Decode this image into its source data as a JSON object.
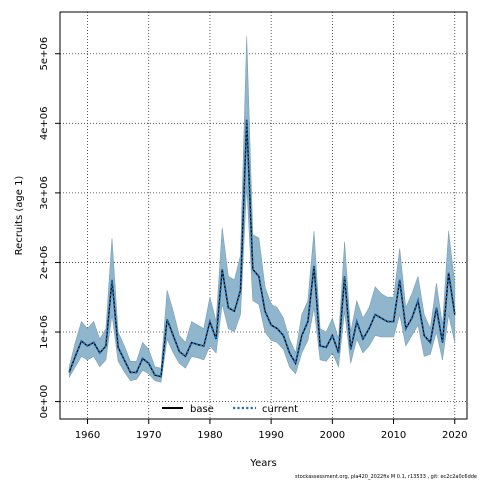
{
  "chart_data": {
    "type": "line",
    "xlabel": "Years",
    "ylabel": "Recruits (age 1)",
    "xlim": [
      1955.5,
      2022
    ],
    "ylim": [
      -250000,
      5600000
    ],
    "xticks": [
      1960,
      1970,
      1980,
      1990,
      2000,
      2010,
      2020
    ],
    "xtick_labels": [
      "1960",
      "1970",
      "1980",
      "1990",
      "2000",
      "2010",
      "2020"
    ],
    "yticks": [
      0,
      1000000,
      2000000,
      3000000,
      4000000,
      5000000
    ],
    "ytick_labels": [
      "0e+00",
      "1e+06",
      "2e+06",
      "3e+06",
      "4e+06",
      "5e+06"
    ],
    "grid": "dotted",
    "legend_position": "bottom-center",
    "band_color": "#8fb6cc",
    "x": [
      1957,
      1958,
      1959,
      1960,
      1961,
      1962,
      1963,
      1964,
      1965,
      1966,
      1967,
      1968,
      1969,
      1970,
      1971,
      1972,
      1973,
      1974,
      1975,
      1976,
      1977,
      1978,
      1979,
      1980,
      1981,
      1982,
      1983,
      1984,
      1985,
      1986,
      1987,
      1988,
      1989,
      1990,
      1991,
      1992,
      1993,
      1994,
      1995,
      1996,
      1997,
      1998,
      1999,
      2000,
      2001,
      2002,
      2003,
      2004,
      2005,
      2006,
      2007,
      2008,
      2009,
      2010,
      2011,
      2012,
      2013,
      2014,
      2015,
      2016,
      2017,
      2018,
      2019,
      2020
    ],
    "series": [
      {
        "name": "base",
        "color": "#000000",
        "dash": "solid",
        "values": [
          420000,
          650000,
          870000,
          800000,
          850000,
          700000,
          800000,
          1750000,
          780000,
          600000,
          420000,
          420000,
          620000,
          550000,
          380000,
          360000,
          1180000,
          950000,
          720000,
          650000,
          850000,
          820000,
          800000,
          1150000,
          900000,
          1900000,
          1350000,
          1300000,
          1600000,
          4050000,
          1900000,
          1800000,
          1300000,
          1100000,
          1050000,
          950000,
          700000,
          550000,
          950000,
          1150000,
          1950000,
          800000,
          780000,
          950000,
          700000,
          1800000,
          750000,
          1150000,
          900000,
          1050000,
          1250000,
          1200000,
          1150000,
          1150000,
          1750000,
          1050000,
          1200000,
          1450000,
          950000,
          850000,
          1350000,
          850000,
          1850000,
          1250000
        ]
      },
      {
        "name": "current",
        "color": "#1e6fb5",
        "dash": "dotted",
        "values": [
          420000,
          650000,
          870000,
          800000,
          850000,
          700000,
          800000,
          1750000,
          780000,
          600000,
          420000,
          420000,
          620000,
          550000,
          380000,
          360000,
          1180000,
          950000,
          720000,
          650000,
          850000,
          820000,
          800000,
          1150000,
          900000,
          1900000,
          1350000,
          1300000,
          1600000,
          4050000,
          1900000,
          1800000,
          1300000,
          1100000,
          1050000,
          950000,
          700000,
          550000,
          950000,
          1150000,
          1950000,
          800000,
          780000,
          950000,
          700000,
          1800000,
          750000,
          1150000,
          900000,
          1050000,
          1250000,
          1200000,
          1150000,
          1150000,
          1750000,
          1050000,
          1200000,
          1450000,
          950000,
          850000,
          1350000,
          850000,
          1850000,
          1250000
        ]
      }
    ],
    "band_lower": [
      350000,
      500000,
      650000,
      600000,
      650000,
      500000,
      600000,
      1250000,
      580000,
      430000,
      300000,
      320000,
      450000,
      400000,
      300000,
      280000,
      900000,
      700000,
      550000,
      480000,
      650000,
      630000,
      600000,
      800000,
      700000,
      1400000,
      1050000,
      1000000,
      1250000,
      3100000,
      1450000,
      1400000,
      1000000,
      880000,
      850000,
      750000,
      500000,
      400000,
      700000,
      880000,
      1350000,
      600000,
      580000,
      700000,
      500000,
      1300000,
      550000,
      900000,
      700000,
      800000,
      950000,
      930000,
      930000,
      930000,
      1250000,
      800000,
      950000,
      1100000,
      650000,
      680000,
      1000000,
      600000,
      1250000,
      850000
    ],
    "band_upper": [
      500000,
      850000,
      1150000,
      1050000,
      1150000,
      900000,
      1050000,
      2350000,
      1000000,
      800000,
      580000,
      580000,
      850000,
      750000,
      500000,
      480000,
      1600000,
      1300000,
      950000,
      850000,
      1150000,
      1100000,
      1050000,
      1500000,
      1150000,
      2500000,
      1800000,
      1750000,
      2100000,
      5250000,
      2400000,
      2350000,
      1650000,
      1400000,
      1350000,
      1200000,
      900000,
      700000,
      1250000,
      1450000,
      2450000,
      1050000,
      1000000,
      1200000,
      900000,
      2300000,
      1000000,
      1450000,
      1200000,
      1350000,
      1650000,
      1550000,
      1500000,
      1500000,
      2200000,
      1350000,
      1550000,
      1800000,
      1250000,
      1050000,
      1700000,
      1100000,
      2450000,
      1700000
    ]
  },
  "footnote": "stockassessment.org, pla420_2022fix  M 0.1, r13533 ,  git: ec2c2a0c6dde"
}
